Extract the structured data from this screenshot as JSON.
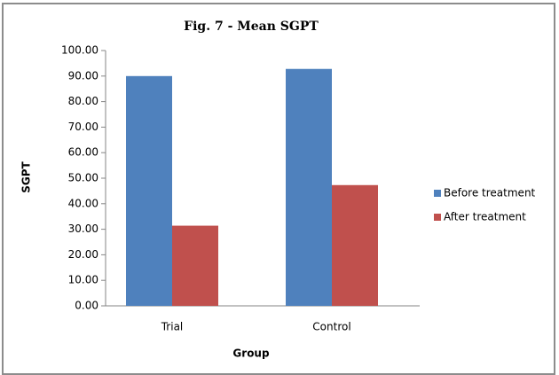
{
  "chart_data": {
    "type": "bar",
    "title": "Fig. 7 - Mean SGPT",
    "x_label": "Group",
    "y_label": "SGPT",
    "categories": [
      "Trial",
      "Control"
    ],
    "series": [
      {
        "name": "Before treatment",
        "color": "#4f81bd",
        "values": [
          90.0,
          92.8
        ]
      },
      {
        "name": "After treatment",
        "color": "#c0504d",
        "values": [
          31.4,
          47.3
        ]
      }
    ],
    "ylim": [
      0,
      100
    ],
    "yticks": [
      {
        "value": 0,
        "label": "0.00"
      },
      {
        "value": 10,
        "label": "10.00"
      },
      {
        "value": 20,
        "label": "20.00"
      },
      {
        "value": 30,
        "label": "30.00"
      },
      {
        "value": 40,
        "label": "40.00"
      },
      {
        "value": 50,
        "label": "50.00"
      },
      {
        "value": 60,
        "label": "60.00"
      },
      {
        "value": 70,
        "label": "70.00"
      },
      {
        "value": 80,
        "label": "80.00"
      },
      {
        "value": 90,
        "label": "90.00"
      },
      {
        "value": 100,
        "label": "100.00"
      }
    ],
    "grid": false,
    "legend": "right"
  }
}
